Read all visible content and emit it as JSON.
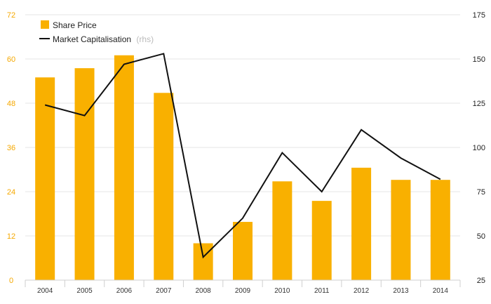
{
  "chart_data": {
    "type": "bar+line",
    "categories": [
      "2004",
      "2005",
      "2006",
      "2007",
      "2008",
      "2009",
      "2010",
      "2011",
      "2012",
      "2013",
      "2014"
    ],
    "series": [
      {
        "name": "Share Price",
        "type": "bar",
        "axis": "left",
        "color": "#f9b000",
        "values": [
          55,
          57.5,
          61,
          50.8,
          10,
          15.8,
          26.8,
          21.5,
          30.5,
          27.2,
          27.2
        ]
      },
      {
        "name": "Market Capitalisation",
        "name_suffix": "(rhs)",
        "type": "line",
        "axis": "right",
        "color": "#111111",
        "values": [
          124,
          118,
          147,
          153,
          38,
          60,
          97,
          75,
          110,
          94,
          82
        ]
      }
    ],
    "y_left": {
      "min": 0,
      "max": 72,
      "ticks": [
        "0",
        "12",
        "24",
        "36",
        "48",
        "60",
        "72"
      ],
      "color": "#f5a800"
    },
    "y_right": {
      "min": 25,
      "max": 175,
      "ticks": [
        "25",
        "50",
        "75",
        "100",
        "125",
        "150",
        "175"
      ],
      "color": "#222222"
    },
    "grid": "horizontal",
    "legend_position": "top-left"
  }
}
